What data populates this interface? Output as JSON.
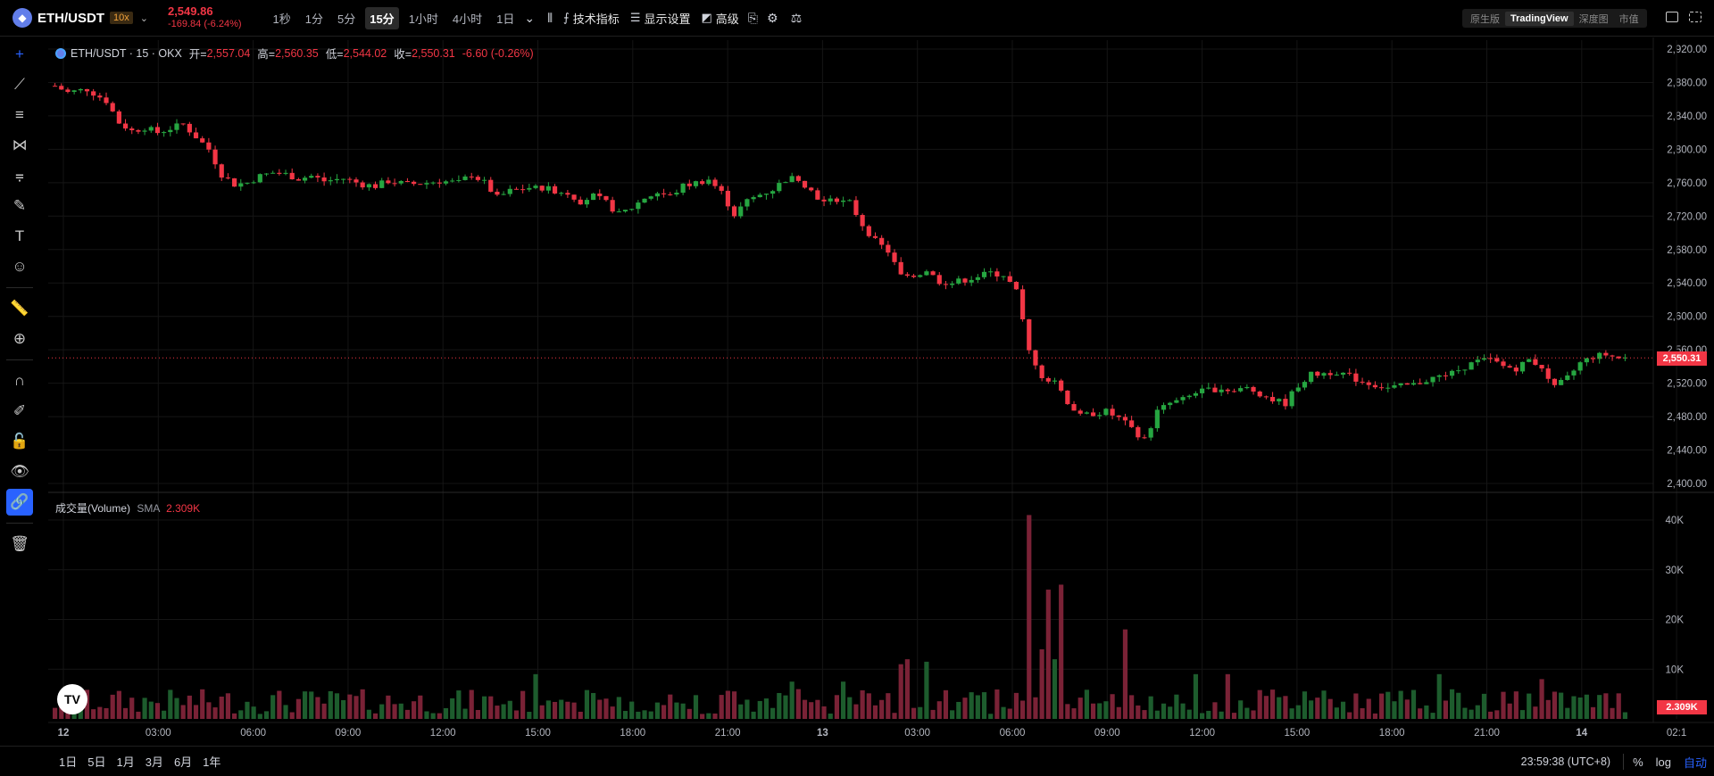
{
  "header": {
    "symbol": "ETH/USDT",
    "leverage": "10x",
    "price": "2,549.86",
    "change": "-169.84 (-6.24%)",
    "timeframes": [
      "1秒",
      "1分",
      "5分",
      "15分",
      "1小时",
      "4小时",
      "1日"
    ],
    "active_timeframe": "15分",
    "indicators_label": "技术指标",
    "display_label": "显示设置",
    "advanced_label": "高级",
    "views": [
      "原生版",
      "TradingView",
      "深度图",
      "市值"
    ],
    "active_view": "TradingView"
  },
  "legend": {
    "title": "ETH/USDT · 15 · OKX",
    "open_label": "开=",
    "open": "2,557.04",
    "high_label": "高=",
    "high": "2,560.35",
    "low_label": "低=",
    "low": "2,544.02",
    "close_label": "收=",
    "close": "2,550.31",
    "change": "-6.60 (-0.26%)"
  },
  "volume_legend": {
    "title": "成交量(Volume)",
    "sma_label": "SMA",
    "value": "2.309K"
  },
  "price_tag": "2,550.31",
  "volume_tag": "2.309K",
  "tv_logo": "TV",
  "colors": {
    "up": "#26a641",
    "down": "#f23645",
    "up_bar": "#1d5c2d",
    "down_bar": "#7a2236",
    "accent": "#2962ff"
  },
  "left_tools": [
    "crosshair-icon",
    "trend-line-icon",
    "horizontal-lines-icon",
    "pattern-icon",
    "fib-icon",
    "brush-icon",
    "text-icon",
    "emoji-icon",
    "ruler-icon",
    "zoom-in-icon",
    "magnet-icon",
    "pencil-lock-icon",
    "lock-icon",
    "eye-icon",
    "link-icon",
    "trash-icon"
  ],
  "bottom": {
    "ranges": [
      "1日",
      "5日",
      "1月",
      "3月",
      "6月",
      "1年"
    ],
    "clock": "23:59:38 (UTC+8)",
    "percent": "%",
    "log": "log",
    "auto": "自动"
  },
  "chart_data": {
    "type": "candlestick",
    "title": "",
    "price_axis": [
      "2,920.00",
      "2,880.00",
      "2,840.00",
      "2,800.00",
      "2,760.00",
      "2,720.00",
      "2,680.00",
      "2,640.00",
      "2,600.00",
      "2,560.00",
      "2,520.00",
      "2,480.00",
      "2,440.00",
      "2,400.00"
    ],
    "volume_axis": [
      "40K",
      "30K",
      "20K",
      "10K"
    ],
    "time_axis": [
      "12",
      "03:00",
      "06:00",
      "09:00",
      "12:00",
      "15:00",
      "18:00",
      "21:00",
      "13",
      "03:00",
      "06:00",
      "09:00",
      "12:00",
      "15:00",
      "18:00",
      "21:00",
      "14",
      "02:1"
    ],
    "ylim": [
      2400,
      2920
    ],
    "volume_ylim": [
      0,
      40000
    ],
    "close_path": [
      [
        0,
        2876
      ],
      [
        2,
        2868
      ],
      [
        5,
        2872
      ],
      [
        8,
        2858
      ],
      [
        10,
        2832
      ],
      [
        12,
        2822
      ],
      [
        14,
        2826
      ],
      [
        16,
        2820
      ],
      [
        18,
        2825
      ],
      [
        20,
        2830
      ],
      [
        22,
        2815
      ],
      [
        24,
        2800
      ],
      [
        26,
        2770
      ],
      [
        28,
        2758
      ],
      [
        30,
        2760
      ],
      [
        32,
        2768
      ],
      [
        34,
        2772
      ],
      [
        36,
        2770
      ],
      [
        38,
        2765
      ],
      [
        40,
        2768
      ],
      [
        42,
        2762
      ],
      [
        45,
        2765
      ],
      [
        48,
        2758
      ],
      [
        50,
        2756
      ],
      [
        52,
        2762
      ],
      [
        55,
        2758
      ],
      [
        58,
        2760
      ],
      [
        60,
        2762
      ],
      [
        63,
        2760
      ],
      [
        65,
        2770
      ],
      [
        67,
        2760
      ],
      [
        69,
        2742
      ],
      [
        71,
        2750
      ],
      [
        74,
        2754
      ],
      [
        77,
        2752
      ],
      [
        80,
        2748
      ],
      [
        82,
        2738
      ],
      [
        84,
        2744
      ],
      [
        86,
        2736
      ],
      [
        88,
        2722
      ],
      [
        90,
        2730
      ],
      [
        92,
        2742
      ],
      [
        94,
        2748
      ],
      [
        96,
        2744
      ],
      [
        98,
        2756
      ],
      [
        100,
        2760
      ],
      [
        102,
        2764
      ],
      [
        104,
        2748
      ],
      [
        106,
        2722
      ],
      [
        108,
        2738
      ],
      [
        110,
        2746
      ],
      [
        112,
        2752
      ],
      [
        114,
        2764
      ],
      [
        116,
        2766
      ],
      [
        118,
        2750
      ],
      [
        120,
        2736
      ],
      [
        122,
        2740
      ],
      [
        124,
        2736
      ],
      [
        126,
        2710
      ],
      [
        128,
        2690
      ],
      [
        130,
        2678
      ],
      [
        132,
        2648
      ],
      [
        134,
        2650
      ],
      [
        136,
        2654
      ],
      [
        138,
        2642
      ],
      [
        140,
        2640
      ],
      [
        142,
        2644
      ],
      [
        144,
        2648
      ],
      [
        146,
        2652
      ],
      [
        148,
        2650
      ],
      [
        150,
        2630
      ],
      [
        152,
        2558
      ],
      [
        154,
        2530
      ],
      [
        156,
        2520
      ],
      [
        158,
        2498
      ],
      [
        160,
        2480
      ],
      [
        162,
        2484
      ],
      [
        164,
        2486
      ],
      [
        166,
        2478
      ],
      [
        168,
        2466
      ],
      [
        170,
        2452
      ],
      [
        172,
        2486
      ],
      [
        174,
        2496
      ],
      [
        176,
        2500
      ],
      [
        178,
        2508
      ],
      [
        180,
        2512
      ],
      [
        182,
        2514
      ],
      [
        184,
        2510
      ],
      [
        186,
        2514
      ],
      [
        188,
        2508
      ],
      [
        190,
        2500
      ],
      [
        192,
        2496
      ],
      [
        194,
        2518
      ],
      [
        196,
        2530
      ],
      [
        198,
        2532
      ],
      [
        200,
        2534
      ],
      [
        202,
        2528
      ],
      [
        204,
        2522
      ],
      [
        206,
        2518
      ],
      [
        208,
        2514
      ],
      [
        210,
        2516
      ],
      [
        212,
        2518
      ],
      [
        214,
        2524
      ],
      [
        216,
        2528
      ],
      [
        218,
        2532
      ],
      [
        220,
        2540
      ],
      [
        222,
        2546
      ],
      [
        224,
        2548
      ],
      [
        226,
        2540
      ],
      [
        228,
        2538
      ],
      [
        230,
        2548
      ],
      [
        232,
        2540
      ],
      [
        234,
        2514
      ],
      [
        236,
        2526
      ],
      [
        238,
        2544
      ],
      [
        240,
        2552
      ],
      [
        242,
        2554
      ],
      [
        244,
        2550
      ]
    ],
    "volume_spikes": [
      {
        "x": 152,
        "value": 41000
      },
      {
        "x": 154,
        "value": 14000
      },
      {
        "x": 155,
        "value": 26000
      },
      {
        "x": 156,
        "value": 12000
      },
      {
        "x": 157,
        "value": 27000
      },
      {
        "x": 167,
        "value": 18000
      },
      {
        "x": 133,
        "value": 12000
      },
      {
        "x": 132,
        "value": 11000
      },
      {
        "x": 136,
        "value": 11500
      },
      {
        "x": 75,
        "value": 9000
      },
      {
        "x": 115,
        "value": 7500
      },
      {
        "x": 123,
        "value": 7500
      },
      {
        "x": 178,
        "value": 9000
      },
      {
        "x": 183,
        "value": 9000
      },
      {
        "x": 216,
        "value": 9000
      },
      {
        "x": 232,
        "value": 8000
      }
    ]
  }
}
